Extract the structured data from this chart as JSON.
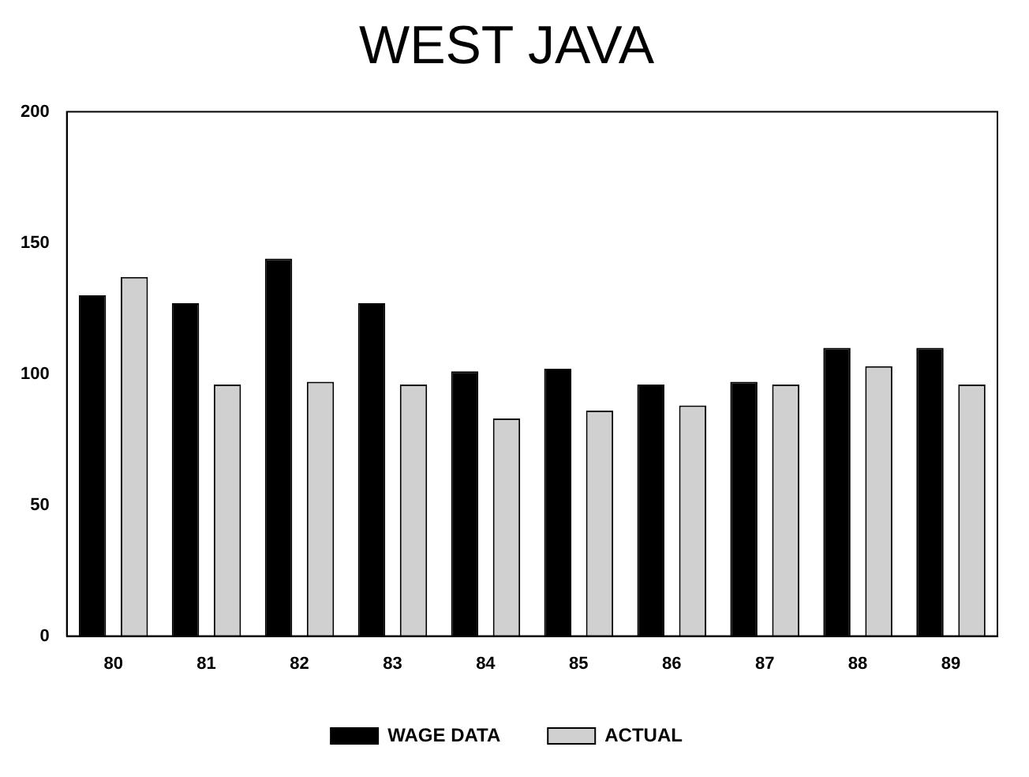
{
  "chart_data": {
    "type": "bar",
    "title": "WEST JAVA",
    "categories": [
      "80",
      "81",
      "82",
      "83",
      "84",
      "85",
      "86",
      "87",
      "88",
      "89"
    ],
    "series": [
      {
        "name": "WAGE DATA",
        "color": "#000000",
        "values": [
          130,
          127,
          144,
          127,
          101,
          102,
          96,
          97,
          110,
          110
        ]
      },
      {
        "name": "ACTUAL",
        "color": "#d0d0d0",
        "values": [
          137,
          96,
          97,
          96,
          83,
          86,
          88,
          96,
          103,
          96
        ]
      }
    ],
    "ylim": [
      0,
      200
    ],
    "yticks": [
      0,
      50,
      100,
      150,
      200
    ],
    "grid": false,
    "legend": "bottom"
  }
}
